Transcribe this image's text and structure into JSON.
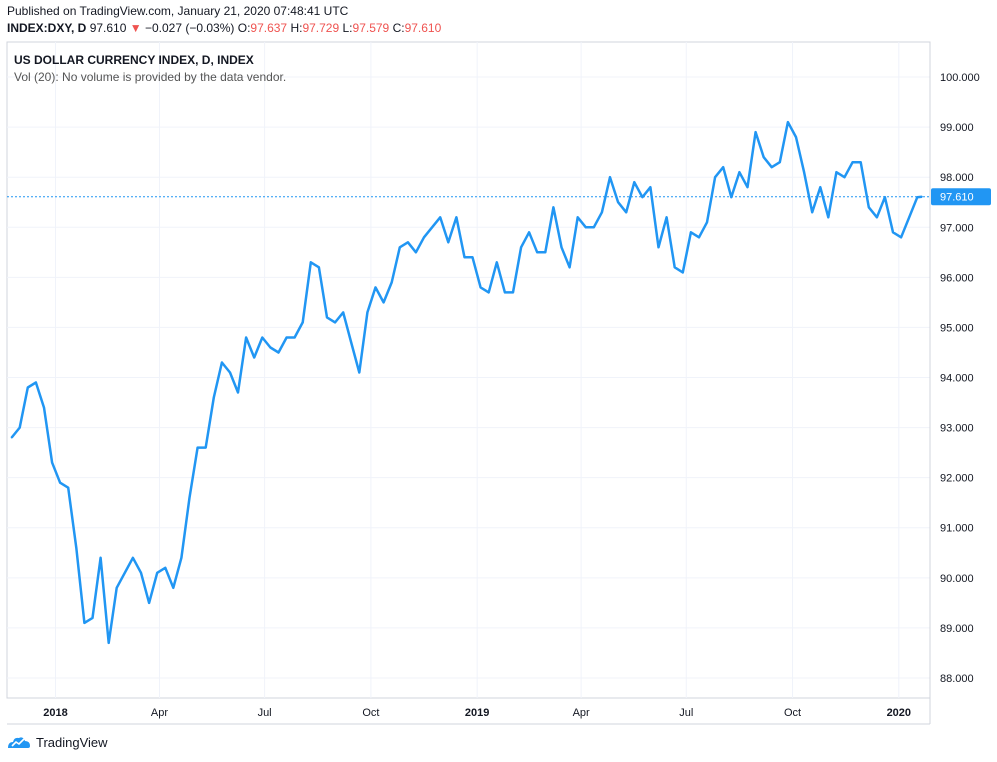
{
  "header": {
    "published": "Published on TradingView.com, January 21, 2020 07:48:41 UTC",
    "symbol": "INDEX:DXY, D",
    "last": "97.610",
    "arrow": "▼",
    "change": "−0.027 (−0.03%)",
    "o_label": "O:",
    "o": "97.637",
    "h_label": "H:",
    "h": "97.729",
    "l_label": "L:",
    "l": "97.579",
    "c_label": "C:",
    "c": "97.610"
  },
  "legend": {
    "title": "US DOLLAR CURRENCY INDEX, D, INDEX",
    "volume": "Vol (20): No volume is provided by the data vendor."
  },
  "footer": {
    "brand": "TradingView"
  },
  "colors": {
    "line": "#2196f3",
    "price_tag": "#2196f3",
    "grid": "#f0f3fa",
    "red": "#ef5350"
  },
  "chart_data": {
    "type": "line",
    "series": [
      {
        "name": "INDEX:DXY",
        "x": [
          "2017-11-24",
          "2017-12-01",
          "2017-12-08",
          "2017-12-15",
          "2017-12-22",
          "2017-12-29",
          "2018-01-05",
          "2018-01-12",
          "2018-01-19",
          "2018-01-26",
          "2018-02-02",
          "2018-02-09",
          "2018-02-16",
          "2018-02-23",
          "2018-03-02",
          "2018-03-09",
          "2018-03-16",
          "2018-03-23",
          "2018-03-30",
          "2018-04-06",
          "2018-04-13",
          "2018-04-20",
          "2018-04-27",
          "2018-05-04",
          "2018-05-11",
          "2018-05-18",
          "2018-05-25",
          "2018-06-01",
          "2018-06-08",
          "2018-06-15",
          "2018-06-22",
          "2018-06-29",
          "2018-07-06",
          "2018-07-13",
          "2018-07-20",
          "2018-07-27",
          "2018-08-03",
          "2018-08-10",
          "2018-08-17",
          "2018-08-24",
          "2018-08-31",
          "2018-09-07",
          "2018-09-14",
          "2018-09-21",
          "2018-09-28",
          "2018-10-05",
          "2018-10-12",
          "2018-10-19",
          "2018-10-26",
          "2018-11-02",
          "2018-11-09",
          "2018-11-16",
          "2018-11-23",
          "2018-11-30",
          "2018-12-07",
          "2018-12-14",
          "2018-12-21",
          "2018-12-28",
          "2019-01-04",
          "2019-01-11",
          "2019-01-18",
          "2019-01-25",
          "2019-02-01",
          "2019-02-08",
          "2019-02-15",
          "2019-02-22",
          "2019-03-01",
          "2019-03-08",
          "2019-03-15",
          "2019-03-22",
          "2019-03-29",
          "2019-04-05",
          "2019-04-12",
          "2019-04-19",
          "2019-04-26",
          "2019-05-03",
          "2019-05-10",
          "2019-05-17",
          "2019-05-24",
          "2019-05-31",
          "2019-06-07",
          "2019-06-14",
          "2019-06-21",
          "2019-06-28",
          "2019-07-05",
          "2019-07-12",
          "2019-07-19",
          "2019-07-26",
          "2019-08-02",
          "2019-08-09",
          "2019-08-16",
          "2019-08-23",
          "2019-08-30",
          "2019-09-06",
          "2019-09-13",
          "2019-09-20",
          "2019-09-27",
          "2019-10-04",
          "2019-10-11",
          "2019-10-18",
          "2019-10-25",
          "2019-11-01",
          "2019-11-08",
          "2019-11-15",
          "2019-11-22",
          "2019-11-29",
          "2019-12-06",
          "2019-12-13",
          "2019-12-20",
          "2019-12-27",
          "2020-01-03",
          "2020-01-10",
          "2020-01-17",
          "2020-01-21"
        ],
        "values": [
          92.8,
          93.0,
          93.8,
          93.9,
          93.4,
          92.3,
          91.9,
          91.8,
          90.6,
          89.1,
          89.2,
          90.4,
          88.7,
          89.8,
          90.1,
          90.4,
          90.1,
          89.5,
          90.1,
          90.2,
          89.8,
          90.4,
          91.6,
          92.6,
          92.6,
          93.6,
          94.3,
          94.1,
          93.7,
          94.8,
          94.4,
          94.8,
          94.6,
          94.5,
          94.8,
          94.8,
          95.1,
          96.3,
          96.2,
          95.2,
          95.1,
          95.3,
          94.7,
          94.1,
          95.3,
          95.8,
          95.5,
          95.9,
          96.6,
          96.7,
          96.5,
          96.8,
          97.0,
          97.2,
          96.7,
          97.2,
          96.4,
          96.4,
          95.8,
          95.7,
          96.3,
          95.7,
          95.7,
          96.6,
          96.9,
          96.5,
          96.5,
          97.4,
          96.6,
          96.2,
          97.2,
          97.0,
          97.0,
          97.3,
          98.0,
          97.5,
          97.3,
          97.9,
          97.6,
          97.8,
          96.6,
          97.2,
          96.2,
          96.1,
          96.9,
          96.8,
          97.1,
          98.0,
          98.2,
          97.6,
          98.1,
          97.8,
          98.9,
          98.4,
          98.2,
          98.3,
          99.1,
          98.8,
          98.1,
          97.3,
          97.8,
          97.2,
          98.1,
          98.0,
          98.3,
          98.3,
          97.4,
          97.2,
          97.6,
          96.9,
          96.8,
          97.2,
          97.6,
          97.61
        ]
      }
    ],
    "last_value": "97.610",
    "y_ticks": [
      "100.000",
      "99.000",
      "98.000",
      "97.000",
      "96.000",
      "95.000",
      "94.000",
      "93.000",
      "92.000",
      "91.000",
      "90.000",
      "89.000",
      "88.000"
    ],
    "x_ticks": [
      {
        "label": "2018",
        "date": "2018-01-01",
        "bold": true
      },
      {
        "label": "Apr",
        "date": "2018-04-01",
        "bold": false
      },
      {
        "label": "Jul",
        "date": "2018-07-01",
        "bold": false
      },
      {
        "label": "Oct",
        "date": "2018-10-01",
        "bold": false
      },
      {
        "label": "2019",
        "date": "2019-01-01",
        "bold": true
      },
      {
        "label": "Apr",
        "date": "2019-04-01",
        "bold": false
      },
      {
        "label": "Jul",
        "date": "2019-07-01",
        "bold": false
      },
      {
        "label": "Oct",
        "date": "2019-10-01",
        "bold": false
      },
      {
        "label": "2020",
        "date": "2020-01-01",
        "bold": true
      }
    ],
    "ylim": [
      87.6,
      100.7
    ],
    "xlim": [
      "2017-11-20",
      "2020-01-28"
    ],
    "grid": true
  }
}
